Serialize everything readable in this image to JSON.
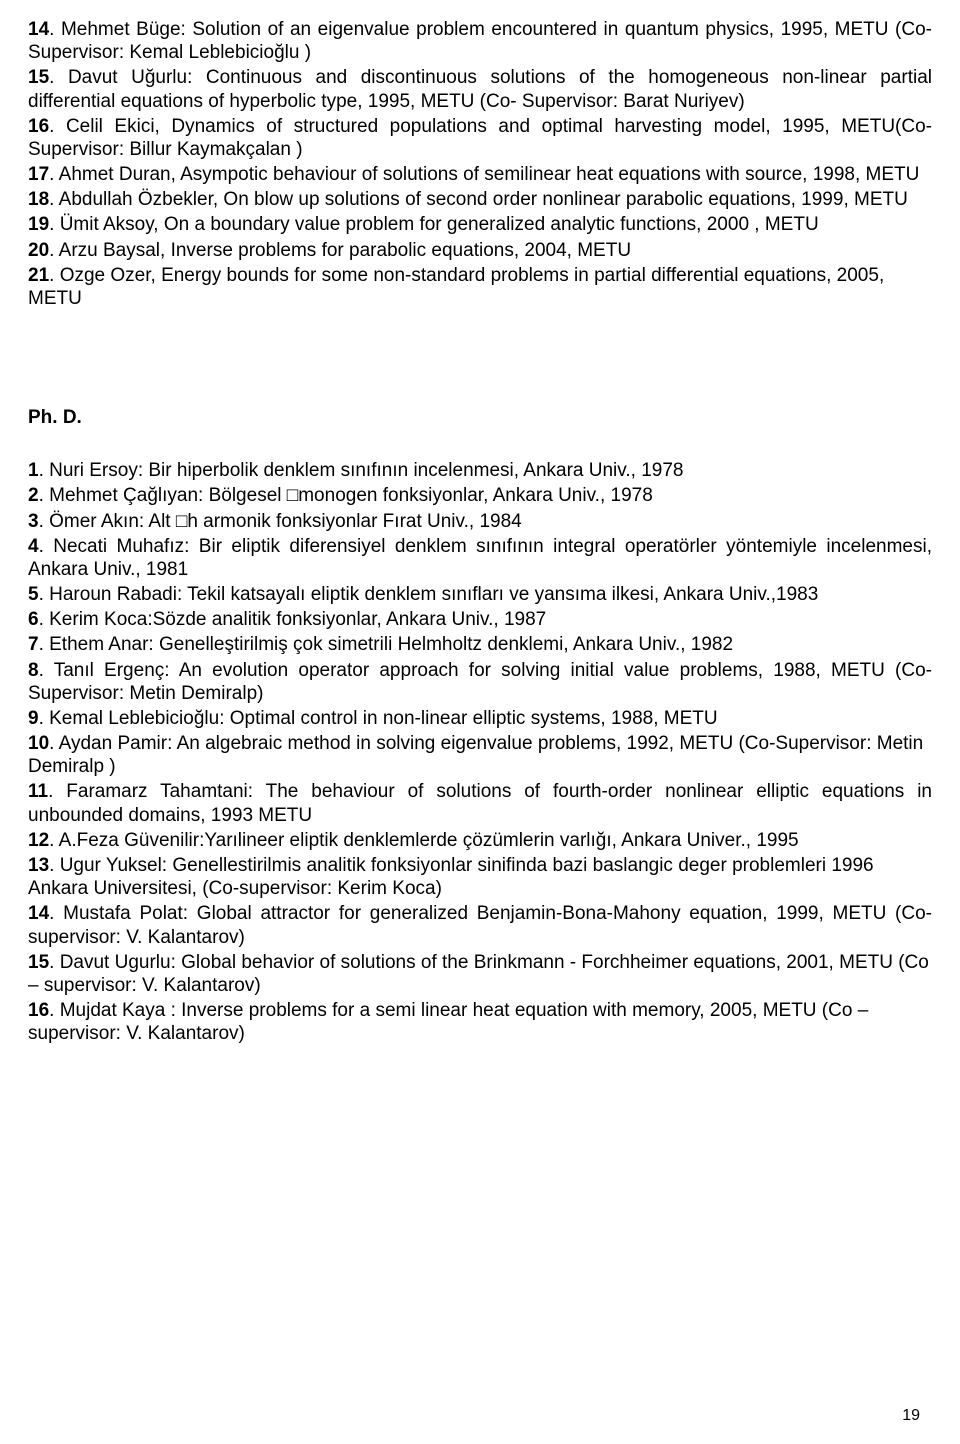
{
  "ms": [
    {
      "n": "14",
      "text": ". Mehmet Büge: Solution of an eigenvalue problem encountered in quantum physics, 1995, METU (Co-Supervisor: Kemal Leblebicioğlu )",
      "just": true
    },
    {
      "n": "15",
      "text": ". Davut Uğurlu: Continuous and discontinuous solutions of the homogeneous non-linear partial differential equations of hyperbolic type, 1995, METU (Co- Supervisor: Barat Nuriyev)",
      "just": true
    },
    {
      "n": "16",
      "text": ". Celil Ekici, Dynamics of structured populations and optimal harvesting model, 1995, METU(Co-Supervisor: Billur Kaymakçalan )",
      "just": true
    },
    {
      "n": "17",
      "text": ". Ahmet Duran, Asympotic behaviour of solutions of semilinear heat equations with source, 1998,  METU",
      "just": false
    },
    {
      "n": "18",
      "text": ". Abdullah Özbekler, On blow up solutions of second order nonlinear parabolic equations, 1999, METU",
      "just": false
    },
    {
      "n": "19",
      "text": ". Ümit Aksoy, On a boundary value problem for generalized analytic functions, 2000 ,  METU",
      "just": false
    },
    {
      "n": "20",
      "text": ". Arzu Baysal, Inverse problems for parabolic equations, 2004, METU",
      "just": false
    },
    {
      "n": "21",
      "text": ". Ozge Ozer, Energy bounds for some non-standard problems in partial differential equations, 2005, METU",
      "just": false
    }
  ],
  "heading": "Ph. D.",
  "phd": [
    {
      "n": "1",
      "text": ". Nuri Ersoy: Bir hiperbolik denklem sınıfının incelenmesi, Ankara Univ., 1978",
      "just": false
    },
    {
      "n": "2",
      "text": ". Mehmet Çağlıyan: Bölgesel □monogen fonksiyonlar, Ankara Univ., 1978",
      "just": false
    },
    {
      "n": "3",
      "text": ". Ömer Akın: Alt □h armonik fonksiyonlar Fırat Univ., 1984",
      "just": false
    },
    {
      "n": "4",
      "text": ". Necati Muhafız: Bir eliptik diferensiyel denklem sınıfının integral operatörler yöntemiyle incelenmesi, Ankara Univ., 1981",
      "just": true
    },
    {
      "n": "5",
      "text": ". Haroun Rabadi: Tekil katsayalı eliptik denklem sınıfları ve yansıma ilkesi, Ankara Univ.,1983",
      "just": true
    },
    {
      "n": "6",
      "text": ". Kerim Koca:Sözde analitik fonksiyonlar, Ankara Univ., 1987",
      "just": false
    },
    {
      "n": "7",
      "text": ". Ethem Anar: Genelleştirilmiş çok simetrili Helmholtz denklemi, Ankara Univ., 1982",
      "just": false
    },
    {
      "n": "8",
      "text": ". Tanıl Ergenç: An evolution operator approach for solving initial value problems, 1988, METU (Co-Supervisor: Metin Demiralp)",
      "just": true
    },
    {
      "n": "9",
      "text": ". Kemal Leblebicioğlu: Optimal control in non-linear elliptic systems, 1988, METU",
      "just": false
    },
    {
      "n": "10",
      "text": ". Aydan Pamir: An algebraic method in solving eigenvalue problems, 1992,  METU (Co-Supervisor: Metin Demiralp )",
      "just": false
    },
    {
      "n": "11",
      "text": ". Faramarz Tahamtani: The behaviour of solutions of fourth-order nonlinear elliptic equations in unbounded domains, 1993 METU",
      "just": true
    },
    {
      "n": "12",
      "text": ". A.Feza Güvenilir:Yarılineer eliptik denklemlerde çözümlerin varlığı, Ankara Univer., 1995",
      "just": false
    },
    {
      "n": "13",
      "text": ". Ugur Yuksel: Genellestirilmis analitik fonksiyonlar sinifinda bazi baslangic deger problemleri 1996 Ankara Universitesi, (Co-supervisor: Kerim Koca)",
      "just": false
    },
    {
      "n": "14",
      "text": ". Mustafa Polat: Global attractor for generalized Benjamin-Bona-Mahony equation, 1999, METU (Co-supervisor: V. Kalantarov)",
      "just": true
    },
    {
      "n": "15",
      "text": ". Davut Ugurlu: Global behavior of solutions of the Brinkmann - Forchheimer equations, 2001, METU  (Co – supervisor: V. Kalantarov)",
      "just": false
    },
    {
      "n": "16",
      "text": ". Mujdat Kaya : Inverse problems for a semi linear heat equation with memory, 2005, METU (Co – supervisor: V. Kalantarov)",
      "just": false
    }
  ],
  "pagenum": "19"
}
